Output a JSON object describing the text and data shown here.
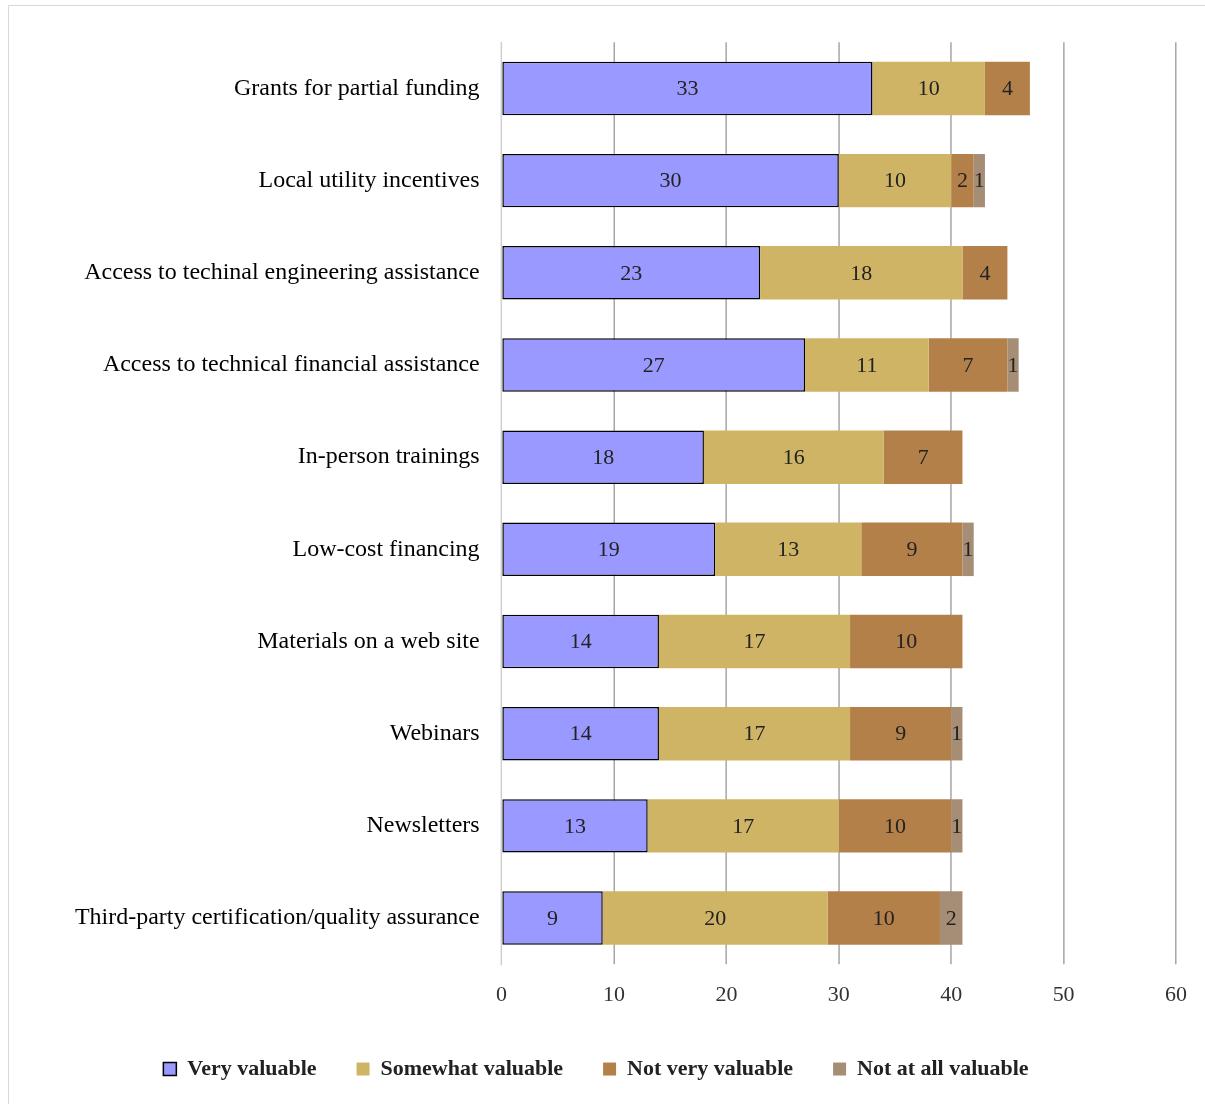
{
  "chart_data": {
    "type": "bar",
    "orientation": "horizontal",
    "stacked": true,
    "categories": [
      "Grants for partial funding",
      "Local utility incentives",
      "Access to techinal engineering assistance",
      "Access to technical financial assistance",
      "In-person trainings",
      "Low-cost financing",
      "Materials on a web site",
      "Webinars",
      "Newsletters",
      "Third-party certification/quality assurance"
    ],
    "series": [
      {
        "name": "Very valuable",
        "color": "#9999ff",
        "values": [
          33,
          30,
          23,
          27,
          18,
          19,
          14,
          14,
          13,
          9
        ]
      },
      {
        "name": "Somewhat valuable",
        "color": "#cfb466",
        "values": [
          10,
          10,
          18,
          11,
          16,
          13,
          17,
          17,
          17,
          20
        ]
      },
      {
        "name": "Not very valuable",
        "color": "#b3804a",
        "values": [
          4,
          2,
          4,
          7,
          7,
          9,
          10,
          9,
          10,
          10
        ]
      },
      {
        "name": "Not at all valuable",
        "color": "#a68d76",
        "values": [
          null,
          1,
          null,
          1,
          null,
          1,
          null,
          1,
          1,
          2
        ]
      }
    ],
    "xlim": [
      0,
      60
    ],
    "xticks": [
      0,
      10,
      20,
      30,
      40,
      50,
      60
    ],
    "grid": "x",
    "legend": "bottom",
    "data_labels": true
  }
}
